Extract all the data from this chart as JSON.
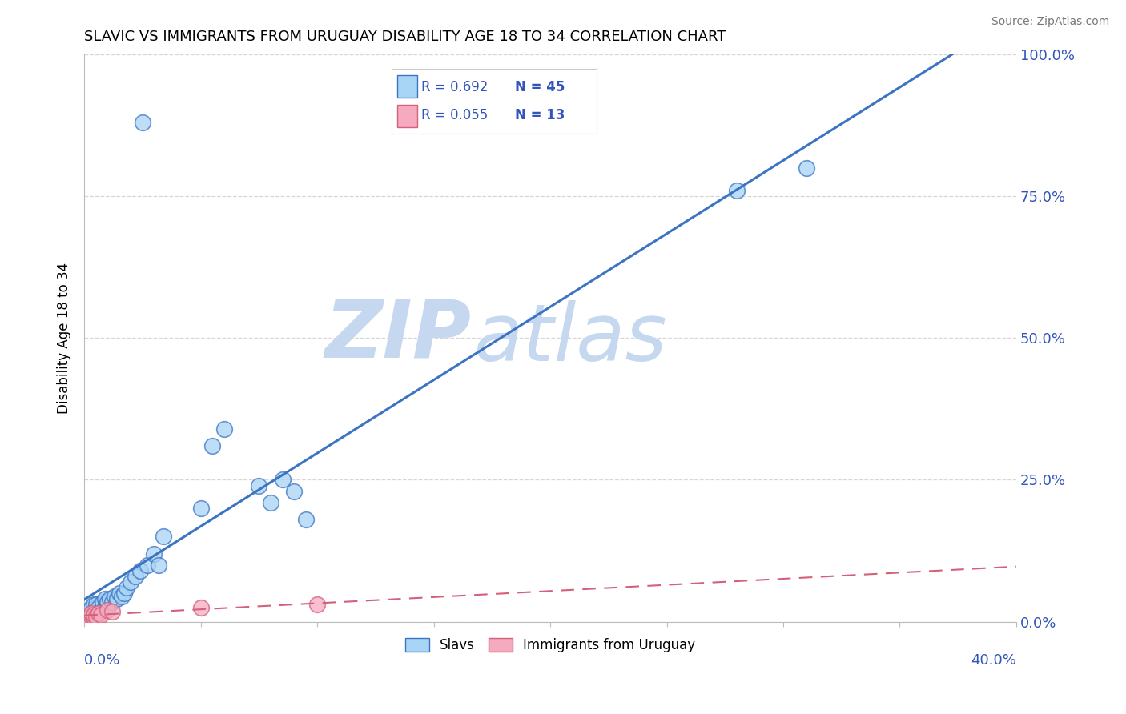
{
  "title": "SLAVIC VS IMMIGRANTS FROM URUGUAY DISABILITY AGE 18 TO 34 CORRELATION CHART",
  "source": "Source: ZipAtlas.com",
  "ylabel": "Disability Age 18 to 34",
  "y_tick_labels": [
    "0.0%",
    "25.0%",
    "50.0%",
    "75.0%",
    "100.0%"
  ],
  "y_tick_values": [
    0.0,
    0.25,
    0.5,
    0.75,
    1.0
  ],
  "xlim": [
    0,
    0.4
  ],
  "ylim": [
    0,
    1.0
  ],
  "slavs_color": "#A8D4F5",
  "slavs_line_color": "#3C74C4",
  "uruguay_color": "#F5AABF",
  "uruguay_line_color": "#D4607A",
  "watermark_zip": "ZIP",
  "watermark_atlas": "atlas",
  "watermark_color": "#C5D8F0",
  "legend_color": "#3355BB",
  "slavs_x": [
    0.001,
    0.002,
    0.002,
    0.003,
    0.003,
    0.004,
    0.004,
    0.005,
    0.005,
    0.005,
    0.006,
    0.006,
    0.007,
    0.008,
    0.008,
    0.009,
    0.009,
    0.01,
    0.01,
    0.011,
    0.012,
    0.013,
    0.014,
    0.015,
    0.016,
    0.017,
    0.018,
    0.02,
    0.022,
    0.024,
    0.025,
    0.027,
    0.03,
    0.032,
    0.034,
    0.05,
    0.055,
    0.06,
    0.075,
    0.08,
    0.085,
    0.09,
    0.095,
    0.28,
    0.31
  ],
  "slavs_y": [
    0.01,
    0.015,
    0.02,
    0.01,
    0.025,
    0.015,
    0.03,
    0.02,
    0.025,
    0.03,
    0.015,
    0.025,
    0.02,
    0.03,
    0.035,
    0.025,
    0.04,
    0.03,
    0.035,
    0.04,
    0.035,
    0.045,
    0.04,
    0.05,
    0.045,
    0.05,
    0.06,
    0.07,
    0.08,
    0.09,
    0.88,
    0.1,
    0.12,
    0.1,
    0.15,
    0.2,
    0.31,
    0.34,
    0.24,
    0.21,
    0.25,
    0.23,
    0.18,
    0.76,
    0.8
  ],
  "uruguay_x": [
    0.001,
    0.002,
    0.003,
    0.003,
    0.004,
    0.004,
    0.005,
    0.006,
    0.007,
    0.01,
    0.012,
    0.05,
    0.1
  ],
  "uruguay_y": [
    0.005,
    0.008,
    0.01,
    0.015,
    0.008,
    0.012,
    0.01,
    0.015,
    0.012,
    0.02,
    0.018,
    0.025,
    0.03
  ],
  "grid_color": "#CCCCCC",
  "spine_color": "#BBBBBB"
}
